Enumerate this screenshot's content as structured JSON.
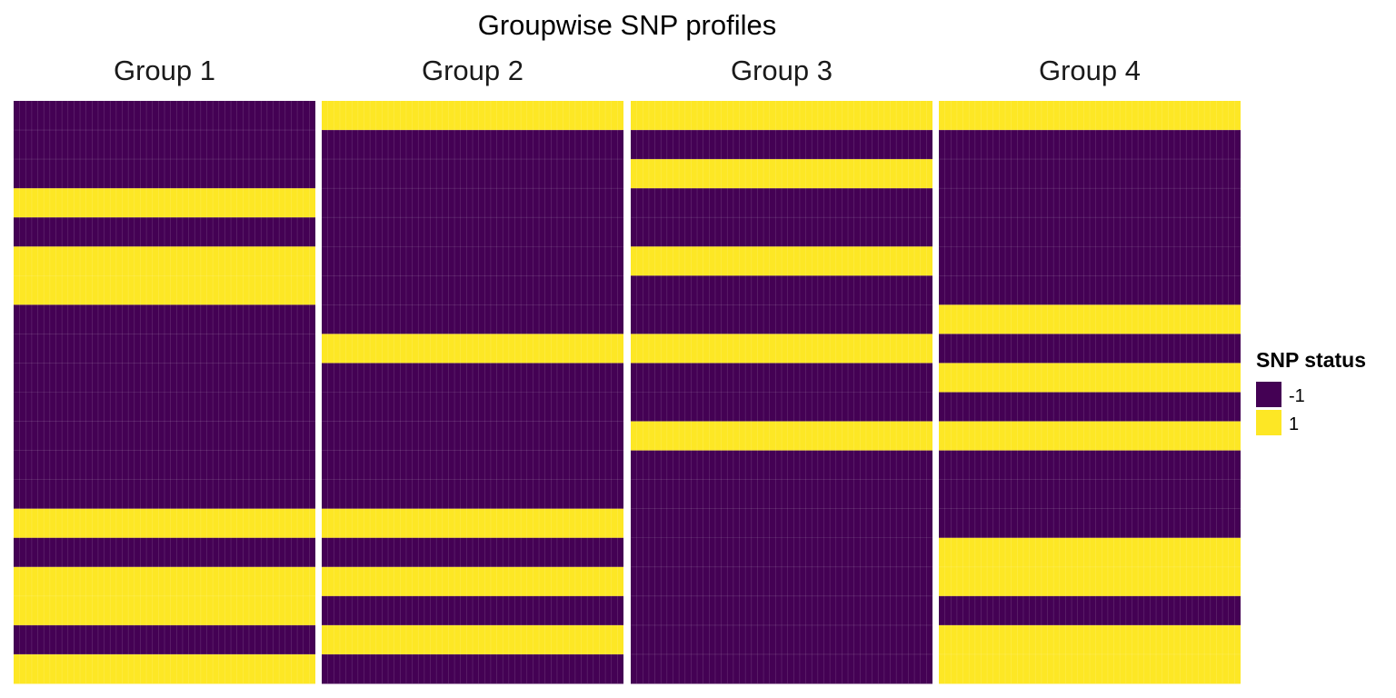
{
  "chart_data": {
    "type": "heatmap",
    "title": "Groupwise SNP profiles",
    "xlabel": "",
    "ylabel": "",
    "legend": {
      "title": "SNP status",
      "placement": "right",
      "entries": [
        {
          "label": "-1",
          "value": -1,
          "color": "#440154"
        },
        {
          "label": "1",
          "value": 1,
          "color": "#FDE725"
        }
      ]
    },
    "grid": true,
    "columns_per_group": 50,
    "row_count": 20,
    "groups": [
      {
        "label": "Group 1",
        "values": [
          -1,
          -1,
          -1,
          1,
          -1,
          1,
          1,
          -1,
          -1,
          -1,
          -1,
          -1,
          -1,
          -1,
          1,
          -1,
          1,
          1,
          -1,
          1
        ]
      },
      {
        "label": "Group 2",
        "values": [
          1,
          -1,
          -1,
          -1,
          -1,
          -1,
          -1,
          -1,
          1,
          -1,
          -1,
          -1,
          -1,
          -1,
          1,
          -1,
          1,
          -1,
          1,
          -1
        ]
      },
      {
        "label": "Group 3",
        "values": [
          1,
          -1,
          1,
          -1,
          -1,
          1,
          -1,
          -1,
          1,
          -1,
          -1,
          1,
          -1,
          -1,
          -1,
          -1,
          -1,
          -1,
          -1,
          -1
        ]
      },
      {
        "label": "Group 4",
        "values": [
          1,
          -1,
          -1,
          -1,
          -1,
          -1,
          -1,
          1,
          -1,
          1,
          -1,
          1,
          -1,
          -1,
          -1,
          1,
          1,
          -1,
          1,
          1
        ]
      }
    ]
  }
}
